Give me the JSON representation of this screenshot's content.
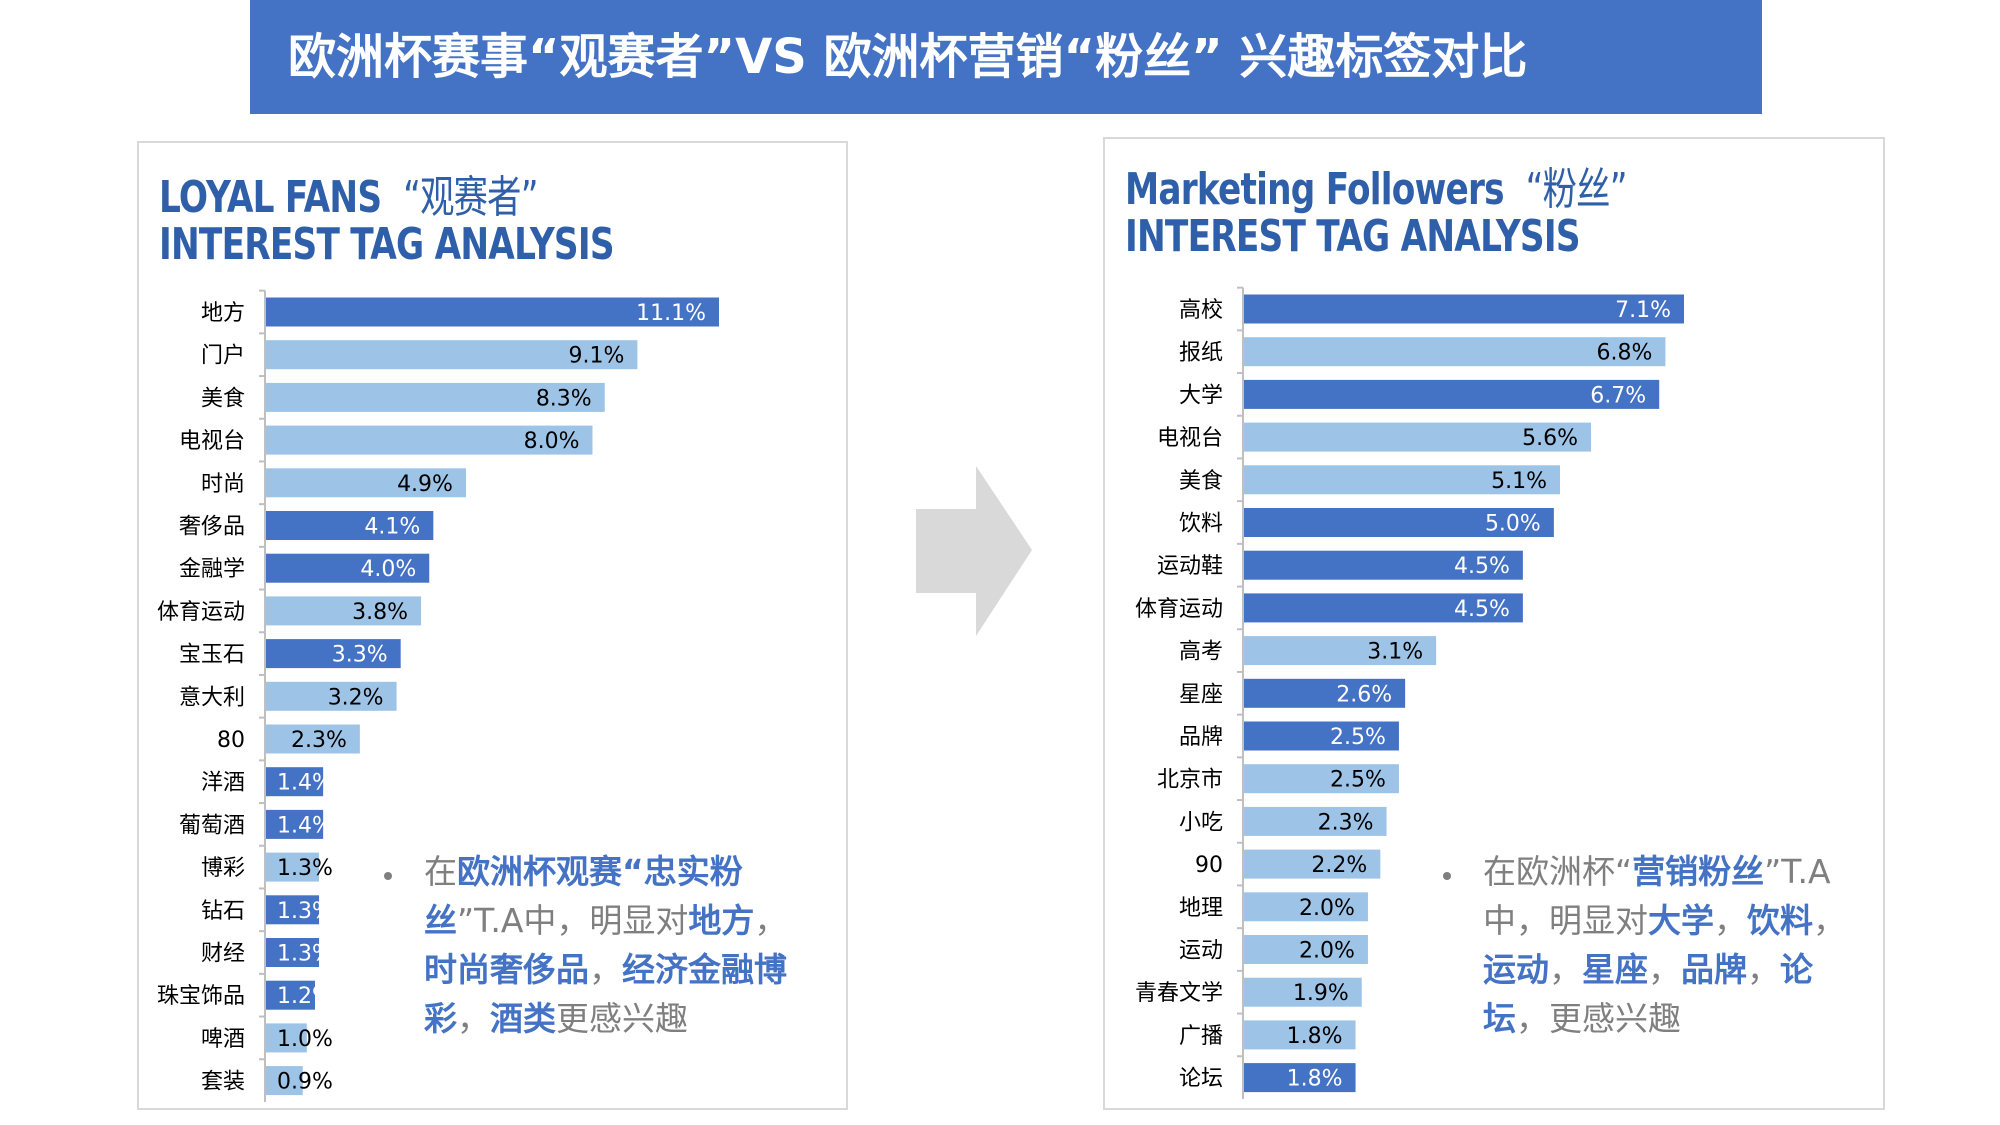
{
  "title": "欧洲杯赛事“观赛者”VS 欧洲杯营销“粉丝” 兴趣标签对比",
  "colors": {
    "dark_bar": "#4472C4",
    "light_bar": "#9DC3E6",
    "banner": "#4472C4",
    "heading": "#2E5FA8"
  },
  "left": {
    "heading_en1": "LOYAL FANS",
    "heading_cn": "“观赛者”",
    "heading_en2": "INTEREST TAG ANALYSIS",
    "note_parts": [
      {
        "text": "在",
        "hl": false
      },
      {
        "text": "欧洲杯观赛“忠实粉丝",
        "hl": true
      },
      {
        "text": "”T.A中，明显对",
        "hl": false
      },
      {
        "text": "地方",
        "hl": true
      },
      {
        "text": "，",
        "hl": false
      },
      {
        "text": "时尚奢侈品",
        "hl": true
      },
      {
        "text": "，",
        "hl": false
      },
      {
        "text": "经济金融博彩",
        "hl": true
      },
      {
        "text": "，",
        "hl": false
      },
      {
        "text": "酒类",
        "hl": true
      },
      {
        "text": "更感兴趣",
        "hl": false
      }
    ]
  },
  "right": {
    "heading_en1": "Marketing Followers",
    "heading_cn": "“粉丝”",
    "heading_en2": "INTEREST TAG ANALYSIS",
    "note_parts": [
      {
        "text": "在欧洲杯“",
        "hl": false
      },
      {
        "text": "营销粉丝",
        "hl": true
      },
      {
        "text": "”T.A中，明显对",
        "hl": false
      },
      {
        "text": "大学",
        "hl": true
      },
      {
        "text": "，",
        "hl": false
      },
      {
        "text": "饮料",
        "hl": true
      },
      {
        "text": "，",
        "hl": false
      },
      {
        "text": "运动",
        "hl": true
      },
      {
        "text": "，",
        "hl": false
      },
      {
        "text": "星座",
        "hl": true
      },
      {
        "text": "，",
        "hl": false
      },
      {
        "text": "品牌",
        "hl": true
      },
      {
        "text": "，",
        "hl": false
      },
      {
        "text": "论坛",
        "hl": true
      },
      {
        "text": "，更感兴趣",
        "hl": false
      }
    ]
  },
  "chart_data": [
    {
      "type": "bar",
      "orientation": "horizontal",
      "categories": [
        "地方",
        "门户",
        "美食",
        "电视台",
        "时尚",
        "奢侈品",
        "金融学",
        "体育运动",
        "宝玉石",
        "意大利",
        "80",
        "洋酒",
        "葡萄酒",
        "博彩",
        "钻石",
        "财经",
        "珠宝饰品",
        "啤酒",
        "套装"
      ],
      "values": [
        11.1,
        9.1,
        8.3,
        8.0,
        4.9,
        4.1,
        4.0,
        3.8,
        3.3,
        3.2,
        2.3,
        1.4,
        1.4,
        1.3,
        1.3,
        1.3,
        1.2,
        1.0,
        0.9
      ],
      "labels": [
        "11.1%",
        "9.1%",
        "8.3%",
        "8.0%",
        "4.9%",
        "4.1%",
        "4.0%",
        "3.8%",
        "3.3%",
        "3.2%",
        "2.3%",
        "1.4%",
        "1.4%",
        "1.3%",
        "1.3%",
        "1.3%",
        "1.2%",
        "1.0%",
        "0.9%"
      ],
      "bar_shades": [
        "dark",
        "light",
        "light",
        "light",
        "light",
        "dark",
        "dark",
        "light",
        "dark",
        "light",
        "light",
        "dark",
        "dark",
        "light",
        "dark",
        "dark",
        "dark",
        "light",
        "light"
      ],
      "xlim": [
        0,
        11.1
      ],
      "grid": false,
      "unit": "%"
    },
    {
      "type": "bar",
      "orientation": "horizontal",
      "categories": [
        "高校",
        "报纸",
        "大学",
        "电视台",
        "美食",
        "饮料",
        "运动鞋",
        "体育运动",
        "高考",
        "星座",
        "品牌",
        "北京市",
        "小吃",
        "90",
        "地理",
        "运动",
        "青春文学",
        "广播",
        "论坛"
      ],
      "values": [
        7.1,
        6.8,
        6.7,
        5.6,
        5.1,
        5.0,
        4.5,
        4.5,
        3.1,
        2.6,
        2.5,
        2.5,
        2.3,
        2.2,
        2.0,
        2.0,
        1.9,
        1.8,
        1.8
      ],
      "labels": [
        "7.1%",
        "6.8%",
        "6.7%",
        "5.6%",
        "5.1%",
        "5.0%",
        "4.5%",
        "4.5%",
        "3.1%",
        "2.6%",
        "2.5%",
        "2.5%",
        "2.3%",
        "2.2%",
        "2.0%",
        "2.0%",
        "1.9%",
        "1.8%",
        "1.8%"
      ],
      "bar_shades": [
        "dark",
        "light",
        "dark",
        "light",
        "light",
        "dark",
        "dark",
        "dark",
        "light",
        "dark",
        "dark",
        "light",
        "light",
        "light",
        "light",
        "light",
        "light",
        "light",
        "dark"
      ],
      "xlim": [
        0,
        7.1
      ],
      "grid": false,
      "unit": "%"
    }
  ]
}
